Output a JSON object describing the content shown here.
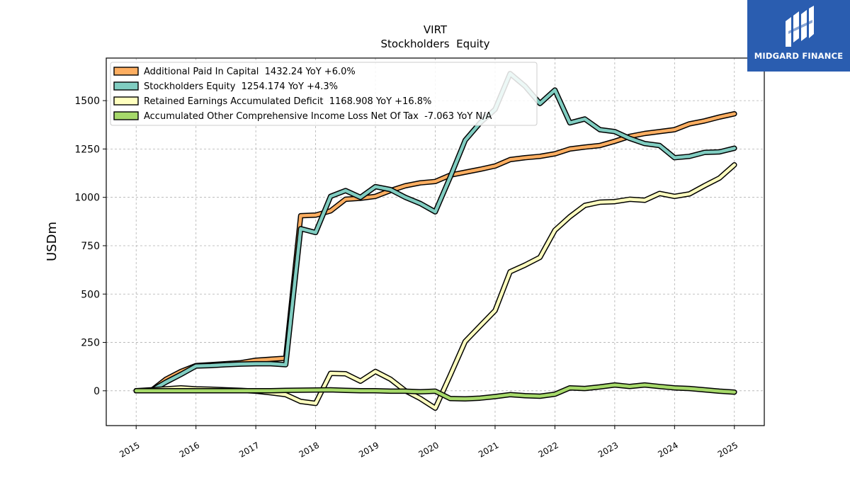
{
  "brand": {
    "name": "MIDGARD FINANCE",
    "bg_color": "#2a5db0"
  },
  "chart_data": {
    "type": "line",
    "title": "VIRT",
    "subtitle": "Stockholders  Equity",
    "ylabel": "USDm",
    "xlabel": "",
    "ylim": [
      -180,
      1720
    ],
    "xlim": [
      2014.5,
      2025.5
    ],
    "yticks": [
      0,
      250,
      500,
      750,
      1000,
      1250,
      1500
    ],
    "xticks": [
      2015,
      2016,
      2017,
      2018,
      2019,
      2020,
      2021,
      2022,
      2023,
      2024,
      2025
    ],
    "grid": true,
    "legend_position": "top-left",
    "series": [
      {
        "name": "Additional Paid In Capital  1432.24 YoY +6.0%",
        "color": "#fdae61",
        "x": [
          2015.0,
          2015.25,
          2015.5,
          2015.75,
          2016.0,
          2016.25,
          2016.5,
          2016.75,
          2017.0,
          2017.25,
          2017.5,
          2017.75,
          2018.0,
          2018.25,
          2018.5,
          2018.75,
          2019.0,
          2019.25,
          2019.5,
          2019.75,
          2020.0,
          2020.25,
          2020.5,
          2020.75,
          2021.0,
          2021.25,
          2021.5,
          2021.75,
          2022.0,
          2022.25,
          2022.5,
          2022.75,
          2023.0,
          2023.25,
          2023.5,
          2023.75,
          2024.0,
          2024.25,
          2024.5,
          2024.75,
          2025.0
        ],
        "y": [
          0,
          0,
          60,
          100,
          130,
          135,
          140,
          145,
          158,
          163,
          168,
          905,
          908,
          930,
          990,
          995,
          1005,
          1035,
          1060,
          1075,
          1082,
          1115,
          1130,
          1145,
          1162,
          1195,
          1205,
          1212,
          1225,
          1250,
          1260,
          1268,
          1290,
          1315,
          1330,
          1340,
          1350,
          1380,
          1395,
          1415,
          1432
        ]
      },
      {
        "name": "Stockholders Equity  1254.174 YoY +4.3%",
        "color": "#80cdc1",
        "x": [
          2015.0,
          2015.25,
          2015.5,
          2015.75,
          2016.0,
          2016.25,
          2016.5,
          2016.75,
          2017.0,
          2017.25,
          2017.5,
          2017.75,
          2018.0,
          2018.25,
          2018.5,
          2018.75,
          2019.0,
          2019.25,
          2019.5,
          2019.75,
          2020.0,
          2020.25,
          2020.5,
          2020.75,
          2021.0,
          2021.25,
          2021.5,
          2021.75,
          2022.0,
          2022.25,
          2022.5,
          2022.75,
          2023.0,
          2023.25,
          2023.5,
          2023.75,
          2024.0,
          2024.25,
          2024.5,
          2024.75,
          2025.0
        ],
        "y": [
          0,
          0,
          45,
          85,
          128,
          130,
          135,
          138,
          140,
          140,
          135,
          838,
          818,
          1005,
          1035,
          1000,
          1055,
          1040,
          1000,
          968,
          925,
          1105,
          1295,
          1385,
          1455,
          1640,
          1575,
          1485,
          1555,
          1385,
          1405,
          1350,
          1340,
          1305,
          1278,
          1268,
          1205,
          1212,
          1232,
          1235,
          1254
        ]
      },
      {
        "name": "Retained Earnings Accumulated Deficit  1168.908 YoY +16.8%",
        "color": "#ffffbf",
        "x": [
          2015.0,
          2015.25,
          2015.5,
          2015.75,
          2016.0,
          2016.25,
          2016.5,
          2016.75,
          2017.0,
          2017.25,
          2017.5,
          2017.75,
          2018.0,
          2018.25,
          2018.5,
          2018.75,
          2019.0,
          2019.25,
          2019.5,
          2019.75,
          2020.0,
          2020.25,
          2020.5,
          2020.75,
          2021.0,
          2021.25,
          2021.5,
          2021.75,
          2022.0,
          2022.25,
          2022.5,
          2022.75,
          2023.0,
          2023.25,
          2023.5,
          2023.75,
          2024.0,
          2024.25,
          2024.5,
          2024.75,
          2025.0
        ],
        "y": [
          0,
          5,
          10,
          15,
          10,
          8,
          5,
          2,
          -2,
          -10,
          -20,
          -55,
          -65,
          90,
          88,
          50,
          100,
          60,
          0,
          -40,
          -90,
          80,
          255,
          335,
          415,
          615,
          650,
          690,
          830,
          900,
          958,
          975,
          978,
          990,
          985,
          1020,
          1005,
          1018,
          1060,
          1100,
          1168
        ]
      },
      {
        "name": "Accumulated Other Comprehensive Income Loss Net Of Tax  -7.063 YoY N/A",
        "color": "#a6d96a",
        "x": [
          2015.0,
          2015.25,
          2015.5,
          2015.75,
          2016.0,
          2016.25,
          2016.5,
          2016.75,
          2017.0,
          2017.25,
          2017.5,
          2017.75,
          2018.0,
          2018.25,
          2018.5,
          2018.75,
          2019.0,
          2019.25,
          2019.5,
          2019.75,
          2020.0,
          2020.25,
          2020.5,
          2020.75,
          2021.0,
          2021.25,
          2021.5,
          2021.75,
          2022.0,
          2022.25,
          2022.5,
          2022.75,
          2023.0,
          2023.25,
          2023.5,
          2023.75,
          2024.0,
          2024.25,
          2024.5,
          2024.75,
          2025.0
        ],
        "y": [
          0,
          0,
          0,
          0,
          0,
          0,
          0,
          0,
          0,
          0,
          2,
          3,
          4,
          5,
          2,
          0,
          0,
          -2,
          -2,
          -5,
          -2,
          -40,
          -42,
          -38,
          -30,
          -20,
          -25,
          -28,
          -18,
          15,
          12,
          20,
          30,
          22,
          30,
          22,
          15,
          12,
          5,
          -2,
          -7
        ]
      }
    ]
  }
}
